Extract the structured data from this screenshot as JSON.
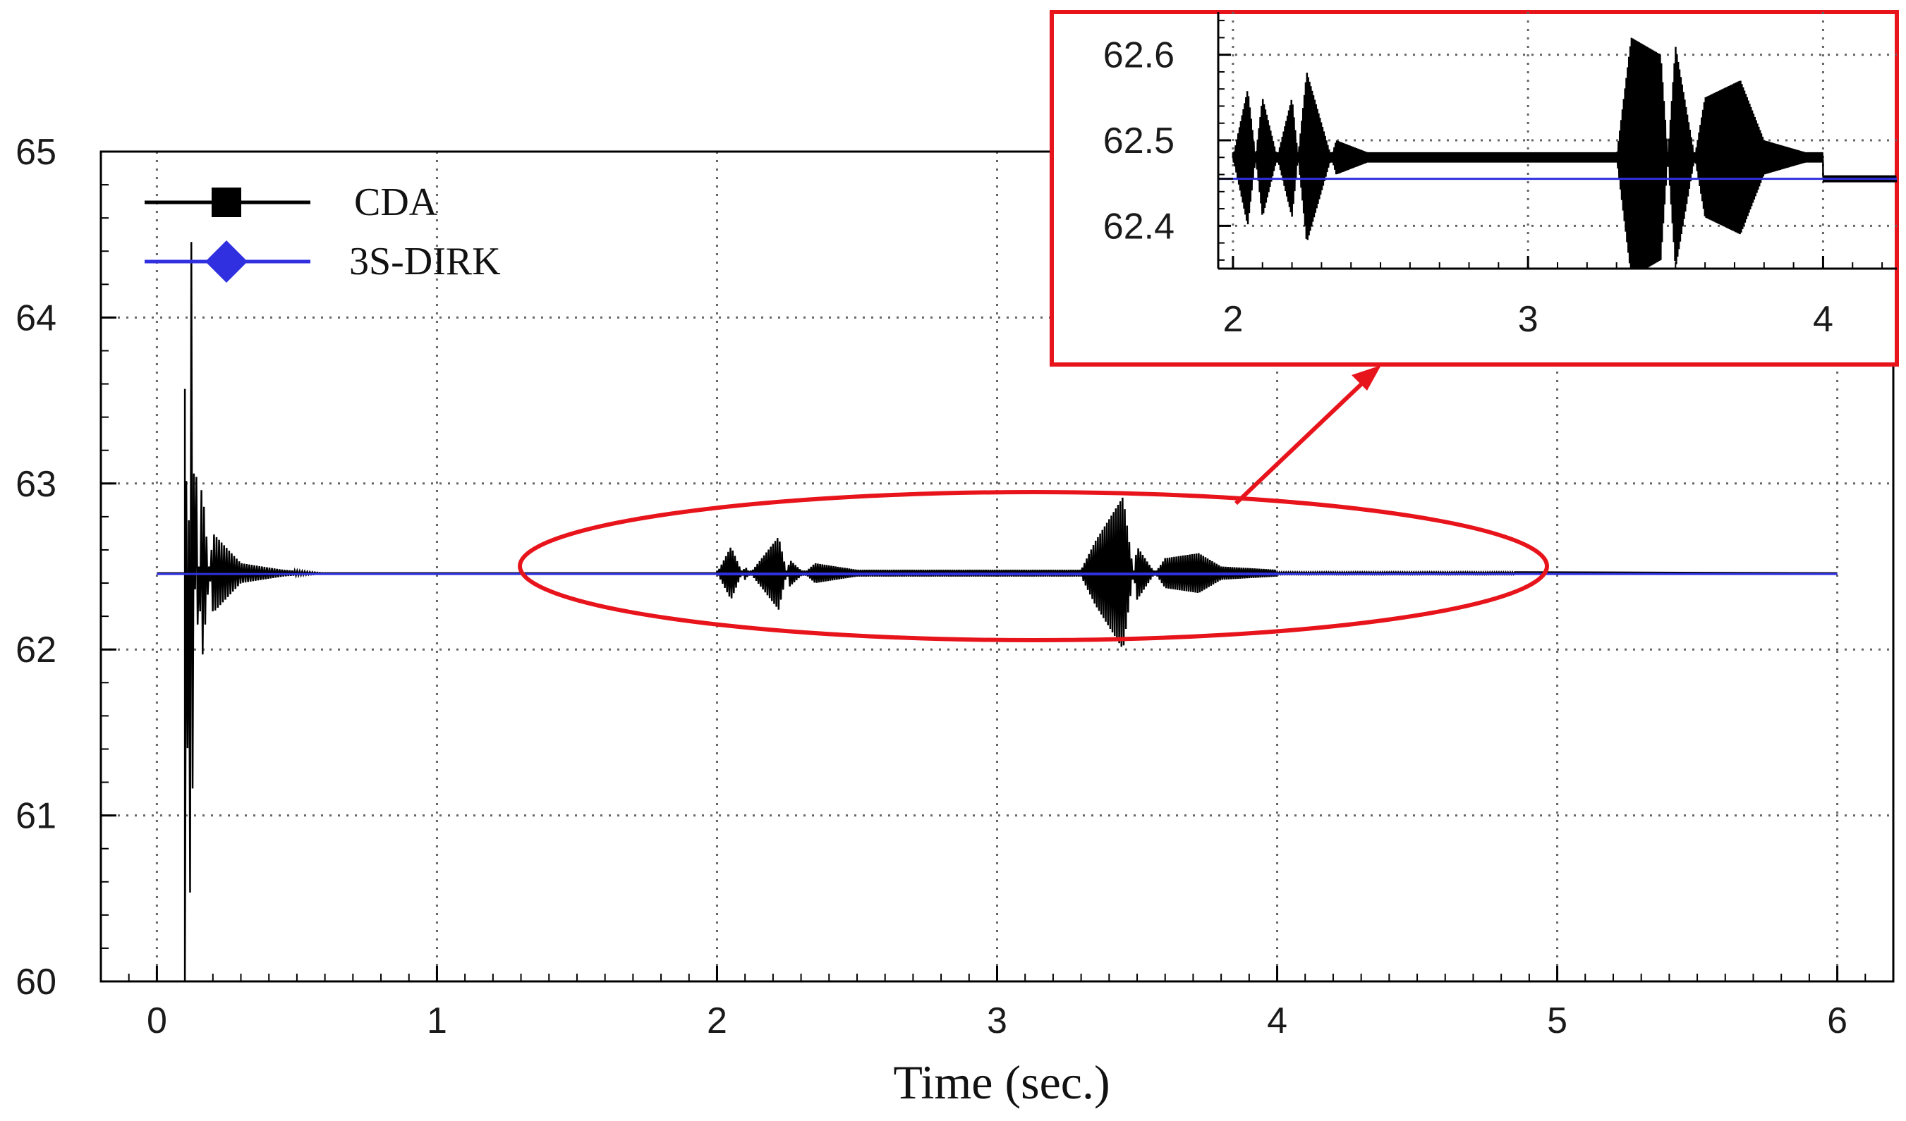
{
  "chart_data": [
    {
      "type": "line",
      "title": "",
      "xlabel": "Time (sec.)",
      "ylabel": "",
      "xlim": [
        -0.2,
        6.2
      ],
      "ylim": [
        60,
        65
      ],
      "xticks": [
        "0",
        "1",
        "2",
        "3",
        "4",
        "5",
        "6"
      ],
      "yticks": [
        "60",
        "61",
        "62",
        "63",
        "64",
        "65"
      ],
      "grid": true,
      "legend_position": "top-left",
      "series": [
        {
          "name": "CDA",
          "color": "#000000",
          "marker": "square",
          "steady_value": 62.46,
          "x": [
            0,
            0.1,
            0.11,
            0.12,
            0.14,
            0.16,
            0.2,
            0.3,
            0.45,
            0.6,
            2.0,
            2.05,
            2.1,
            2.22,
            2.26,
            2.35,
            2.5,
            3.0,
            3.3,
            3.35,
            3.45,
            3.5,
            3.6,
            3.72,
            3.8,
            4.0,
            4.5,
            4.85,
            6.0
          ],
          "y": [
            62.46,
            62.46,
            63.57,
            60.0,
            63.1,
            61.9,
            62.7,
            62.52,
            62.48,
            62.46,
            62.46,
            62.62,
            62.42,
            62.68,
            62.38,
            62.52,
            62.48,
            62.48,
            62.48,
            62.65,
            62.92,
            62.3,
            62.55,
            62.58,
            62.5,
            62.48,
            62.46,
            62.46,
            62.46
          ]
        },
        {
          "name": "3S-DIRK",
          "color": "#3030e0",
          "marker": "diamond",
          "steady_value": 62.455,
          "x": [
            0,
            2.0,
            4.0,
            6.0
          ],
          "y": [
            62.455,
            62.455,
            62.455,
            62.455
          ]
        }
      ]
    },
    {
      "type": "line",
      "title": "",
      "xlabel": "",
      "ylabel": "",
      "xlim": [
        1.95,
        4.25
      ],
      "ylim": [
        62.35,
        62.65
      ],
      "xticks": [
        "2",
        "3",
        "4"
      ],
      "yticks": [
        "62.4",
        "62.5",
        "62.6"
      ],
      "grid": true,
      "series": [
        {
          "name": "CDA",
          "color": "#000000",
          "steady_value": 62.48,
          "x": [
            2.0,
            2.05,
            2.1,
            2.2,
            2.25,
            2.35,
            2.5,
            3.0,
            3.3,
            3.35,
            3.45,
            3.5,
            3.6,
            3.72,
            3.8,
            4.0,
            4.25
          ],
          "y": [
            62.48,
            62.56,
            62.41,
            62.55,
            62.38,
            62.5,
            62.48,
            62.48,
            62.48,
            62.62,
            62.6,
            62.35,
            62.55,
            62.57,
            62.5,
            62.48,
            62.455
          ]
        },
        {
          "name": "3S-DIRK",
          "color": "#3030e0",
          "steady_value": 62.455,
          "x": [
            1.95,
            4.25
          ],
          "y": [
            62.455,
            62.455
          ]
        }
      ]
    }
  ],
  "colors": {
    "highlight": "#e8141c",
    "axis": "#000000",
    "grid": "#666666"
  }
}
